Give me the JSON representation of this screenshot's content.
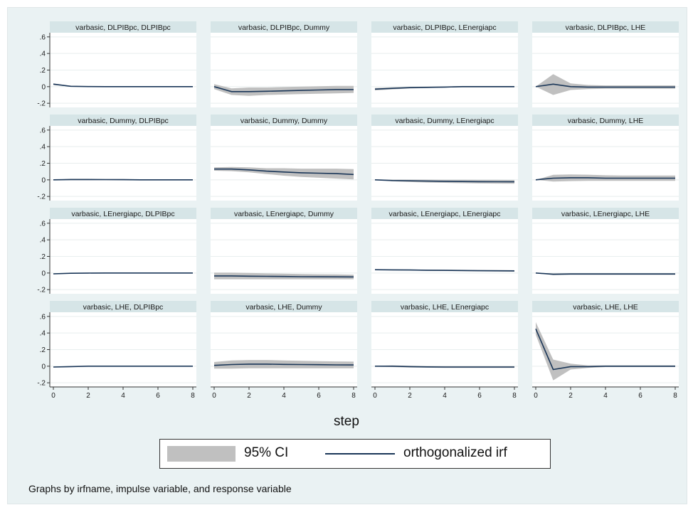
{
  "chart_data": {
    "type": "line",
    "grid": true,
    "x_axis_title": "step",
    "xticks": [
      0,
      2,
      4,
      6,
      8
    ],
    "ylim": [
      -0.25,
      0.65
    ],
    "yticks": [
      -0.2,
      0,
      0.2,
      0.4,
      0.6
    ],
    "ytick_labels": [
      "-.2",
      "0",
      ".2",
      ".4",
      ".6"
    ],
    "legend": {
      "placement": "bottom",
      "ci_label": "95% CI",
      "irf_label": "orthogonalized irf"
    },
    "note": "Graphs by irfname, impulse variable, and response variable",
    "colors": {
      "ci_band": "#c0c0c0",
      "irf_line": "#1a3658",
      "frame_bg": "#eaf2f3",
      "panel_header": "#d6e5e7"
    },
    "panels": [
      {
        "title": "varbasic, DLPIBpc, DLPIBpc",
        "x": [
          0,
          1,
          2,
          3,
          4,
          5,
          6,
          7,
          8
        ],
        "irf": [
          0.03,
          0.005,
          0.001,
          0.0,
          0.0,
          0.0,
          0.0,
          0.0,
          0.0
        ],
        "lower": [
          0.02,
          0.0,
          -0.002,
          -0.002,
          -0.002,
          -0.002,
          -0.002,
          -0.002,
          -0.002
        ],
        "upper": [
          0.04,
          0.01,
          0.004,
          0.002,
          0.002,
          0.002,
          0.002,
          0.002,
          0.002
        ]
      },
      {
        "title": "varbasic, DLPIBpc, Dummy",
        "x": [
          0,
          1,
          2,
          3,
          4,
          5,
          6,
          7,
          8
        ],
        "irf": [
          0.0,
          -0.06,
          -0.06,
          -0.055,
          -0.05,
          -0.045,
          -0.04,
          -0.035,
          -0.035
        ],
        "lower": [
          -0.03,
          -0.1,
          -0.11,
          -0.1,
          -0.095,
          -0.09,
          -0.085,
          -0.08,
          -0.075
        ],
        "upper": [
          0.03,
          -0.02,
          -0.01,
          -0.01,
          -0.005,
          0.0,
          0.005,
          0.01,
          0.01
        ]
      },
      {
        "title": "varbasic, DLPIBpc, LEnergiapc",
        "x": [
          0,
          1,
          2,
          3,
          4,
          5,
          6,
          7,
          8
        ],
        "irf": [
          -0.03,
          -0.02,
          -0.012,
          -0.008,
          -0.005,
          0.0,
          0.0,
          0.0,
          0.0
        ],
        "lower": [
          -0.045,
          -0.032,
          -0.022,
          -0.016,
          -0.012,
          -0.008,
          -0.008,
          -0.008,
          -0.008
        ],
        "upper": [
          -0.015,
          -0.008,
          -0.002,
          0.0,
          0.002,
          0.008,
          0.008,
          0.008,
          0.008
        ]
      },
      {
        "title": "varbasic, DLPIBpc, LHE",
        "x": [
          0,
          1,
          2,
          3,
          4,
          5,
          6,
          7,
          8
        ],
        "irf": [
          0.0,
          0.03,
          0.0,
          -0.005,
          -0.005,
          -0.005,
          -0.005,
          -0.005,
          -0.005
        ],
        "lower": [
          0.0,
          -0.1,
          -0.04,
          -0.03,
          -0.025,
          -0.025,
          -0.025,
          -0.025,
          -0.025
        ],
        "upper": [
          0.0,
          0.15,
          0.04,
          0.02,
          0.015,
          0.015,
          0.015,
          0.015,
          0.015
        ]
      },
      {
        "title": "varbasic, Dummy, DLPIBpc",
        "x": [
          0,
          1,
          2,
          3,
          4,
          5,
          6,
          7,
          8
        ],
        "irf": [
          0.0,
          0.004,
          0.004,
          0.003,
          0.002,
          0.0,
          0.0,
          0.0,
          0.0
        ],
        "lower": [
          0.0,
          -0.004,
          -0.004,
          -0.004,
          -0.005,
          -0.006,
          -0.006,
          -0.006,
          -0.006
        ],
        "upper": [
          0.0,
          0.012,
          0.012,
          0.01,
          0.009,
          0.006,
          0.006,
          0.006,
          0.006
        ]
      },
      {
        "title": "varbasic, Dummy, Dummy",
        "x": [
          0,
          1,
          2,
          3,
          4,
          5,
          6,
          7,
          8
        ],
        "irf": [
          0.13,
          0.13,
          0.12,
          0.105,
          0.095,
          0.085,
          0.08,
          0.075,
          0.065
        ],
        "lower": [
          0.11,
          0.105,
          0.09,
          0.07,
          0.05,
          0.035,
          0.025,
          0.015,
          0.005
        ],
        "upper": [
          0.15,
          0.155,
          0.15,
          0.14,
          0.14,
          0.135,
          0.135,
          0.135,
          0.13
        ]
      },
      {
        "title": "varbasic, Dummy, LEnergiapc",
        "x": [
          0,
          1,
          2,
          3,
          4,
          5,
          6,
          7,
          8
        ],
        "irf": [
          0.0,
          -0.008,
          -0.012,
          -0.015,
          -0.018,
          -0.02,
          -0.022,
          -0.023,
          -0.024
        ],
        "lower": [
          0.0,
          -0.018,
          -0.026,
          -0.032,
          -0.036,
          -0.04,
          -0.043,
          -0.045,
          -0.046
        ],
        "upper": [
          0.0,
          0.002,
          0.002,
          0.002,
          0.0,
          0.0,
          -0.001,
          -0.001,
          -0.002
        ]
      },
      {
        "title": "varbasic, Dummy, LHE",
        "x": [
          0,
          1,
          2,
          3,
          4,
          5,
          6,
          7,
          8
        ],
        "irf": [
          0.0,
          0.02,
          0.025,
          0.025,
          0.02,
          0.02,
          0.02,
          0.02,
          0.02
        ],
        "lower": [
          0.0,
          -0.02,
          -0.015,
          -0.012,
          -0.012,
          -0.012,
          -0.012,
          -0.012,
          -0.012
        ],
        "upper": [
          0.0,
          0.06,
          0.065,
          0.062,
          0.055,
          0.052,
          0.052,
          0.052,
          0.052
        ]
      },
      {
        "title": "varbasic, LEnergiapc, DLPIBpc",
        "x": [
          0,
          1,
          2,
          3,
          4,
          5,
          6,
          7,
          8
        ],
        "irf": [
          -0.01,
          -0.003,
          -0.001,
          0.0,
          0.0,
          0.0,
          0.0,
          0.0,
          0.0
        ],
        "lower": [
          -0.015,
          -0.007,
          -0.004,
          -0.003,
          -0.003,
          -0.003,
          -0.003,
          -0.003,
          -0.003
        ],
        "upper": [
          -0.005,
          0.001,
          0.002,
          0.003,
          0.003,
          0.003,
          0.003,
          0.003,
          0.003
        ]
      },
      {
        "title": "varbasic, LEnergiapc, Dummy",
        "x": [
          0,
          1,
          2,
          3,
          4,
          5,
          6,
          7,
          8
        ],
        "irf": [
          -0.035,
          -0.035,
          -0.038,
          -0.04,
          -0.042,
          -0.044,
          -0.045,
          -0.046,
          -0.047
        ],
        "lower": [
          -0.075,
          -0.075,
          -0.075,
          -0.075,
          -0.075,
          -0.075,
          -0.075,
          -0.075,
          -0.075
        ],
        "upper": [
          0.005,
          0.005,
          0.0,
          -0.005,
          -0.008,
          -0.012,
          -0.015,
          -0.017,
          -0.02
        ]
      },
      {
        "title": "varbasic, LEnergiapc, LEnergiapc",
        "x": [
          0,
          1,
          2,
          3,
          4,
          5,
          6,
          7,
          8
        ],
        "irf": [
          0.04,
          0.038,
          0.036,
          0.034,
          0.032,
          0.03,
          0.028,
          0.027,
          0.026
        ],
        "lower": [
          0.035,
          0.032,
          0.03,
          0.027,
          0.024,
          0.022,
          0.02,
          0.018,
          0.016
        ],
        "upper": [
          0.045,
          0.044,
          0.042,
          0.041,
          0.04,
          0.038,
          0.036,
          0.035,
          0.034
        ]
      },
      {
        "title": "varbasic, LEnergiapc, LHE",
        "x": [
          0,
          1,
          2,
          3,
          4,
          5,
          6,
          7,
          8
        ],
        "irf": [
          0.0,
          -0.015,
          -0.012,
          -0.012,
          -0.012,
          -0.012,
          -0.012,
          -0.012,
          -0.012
        ],
        "lower": [
          0.0,
          -0.025,
          -0.022,
          -0.022,
          -0.022,
          -0.022,
          -0.022,
          -0.022,
          -0.022
        ],
        "upper": [
          0.0,
          -0.005,
          -0.002,
          -0.002,
          -0.002,
          -0.002,
          -0.002,
          -0.002,
          -0.002
        ]
      },
      {
        "title": "varbasic, LHE, DLPIBpc",
        "x": [
          0,
          1,
          2,
          3,
          4,
          5,
          6,
          7,
          8
        ],
        "irf": [
          -0.01,
          -0.005,
          0.0,
          0.0,
          0.0,
          0.0,
          0.0,
          0.0,
          0.0
        ],
        "lower": [
          -0.015,
          -0.01,
          -0.004,
          -0.003,
          -0.003,
          -0.003,
          -0.003,
          -0.003,
          -0.003
        ],
        "upper": [
          -0.005,
          0.0,
          0.004,
          0.003,
          0.003,
          0.003,
          0.003,
          0.003,
          0.003
        ]
      },
      {
        "title": "varbasic, LHE, Dummy",
        "x": [
          0,
          1,
          2,
          3,
          4,
          5,
          6,
          7,
          8
        ],
        "irf": [
          0.01,
          0.02,
          0.025,
          0.025,
          0.022,
          0.02,
          0.018,
          0.016,
          0.015
        ],
        "lower": [
          -0.03,
          -0.03,
          -0.025,
          -0.025,
          -0.025,
          -0.025,
          -0.025,
          -0.025,
          -0.025
        ],
        "upper": [
          0.05,
          0.07,
          0.075,
          0.075,
          0.07,
          0.065,
          0.06,
          0.058,
          0.055
        ]
      },
      {
        "title": "varbasic, LHE, LEnergiapc",
        "x": [
          0,
          1,
          2,
          3,
          4,
          5,
          6,
          7,
          8
        ],
        "irf": [
          0.0,
          0.0,
          -0.005,
          -0.008,
          -0.01,
          -0.01,
          -0.01,
          -0.01,
          -0.01
        ],
        "lower": [
          -0.005,
          -0.01,
          -0.015,
          -0.018,
          -0.02,
          -0.02,
          -0.02,
          -0.02,
          -0.02
        ],
        "upper": [
          0.005,
          0.01,
          0.005,
          0.002,
          0.0,
          0.0,
          0.0,
          0.0,
          0.0
        ]
      },
      {
        "title": "varbasic, LHE, LHE",
        "x": [
          0,
          1,
          2,
          3,
          4,
          5,
          6,
          7,
          8
        ],
        "irf": [
          0.45,
          -0.04,
          -0.005,
          -0.005,
          0.0,
          0.0,
          0.0,
          0.0,
          0.0
        ],
        "lower": [
          0.38,
          -0.17,
          -0.04,
          -0.02,
          -0.01,
          -0.01,
          -0.01,
          -0.01,
          -0.01
        ],
        "upper": [
          0.53,
          0.08,
          0.03,
          0.01,
          0.01,
          0.01,
          0.01,
          0.01,
          0.01
        ]
      }
    ]
  }
}
